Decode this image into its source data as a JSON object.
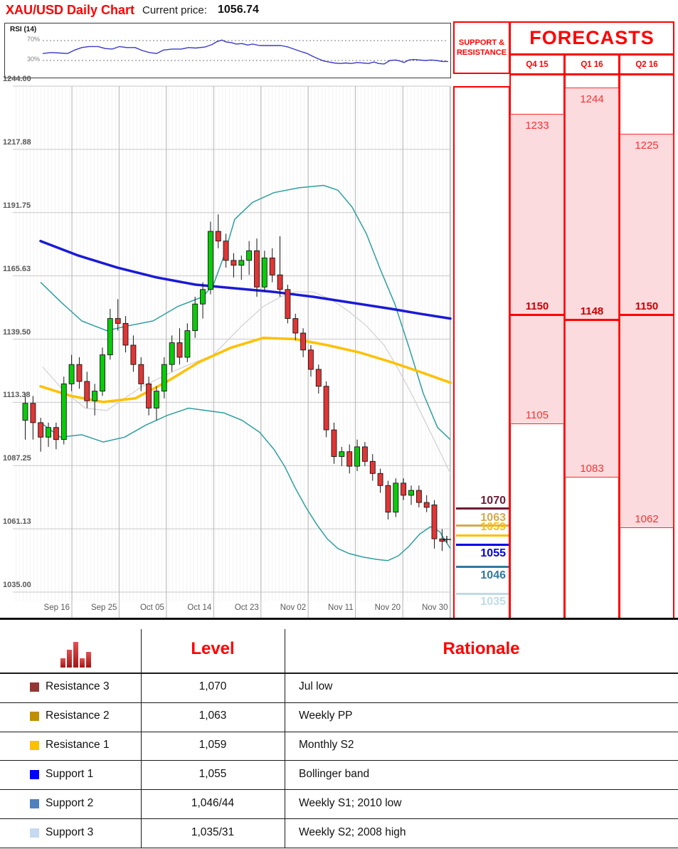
{
  "header": {
    "title": "XAU/USD Daily Chart",
    "current_price_label": "Current price:",
    "current_price": "1056.74"
  },
  "rsi_panel": {
    "label": "RSI (14)",
    "overbought_label": "70%",
    "oversold_label": "30%",
    "line_color": "#3A3AC8"
  },
  "support_resistance": {
    "header_line1": "SUPPORT &",
    "header_line2": "RESISTANCE",
    "levels": [
      {
        "label": "1070",
        "value": 1070,
        "color": "#6E1A33",
        "label_pos": "above"
      },
      {
        "label": "1063",
        "value": 1063,
        "color": "#D4A94F",
        "label_pos": "above"
      },
      {
        "label": "1059",
        "value": 1059,
        "color": "#FFC000",
        "label_pos": "above"
      },
      {
        "label": "1055",
        "value": 1055,
        "color": "#0000E6",
        "label_pos": "below"
      },
      {
        "label": "1046",
        "value": 1046,
        "color": "#31789E",
        "label_pos": "below"
      },
      {
        "label": "1035",
        "value": 1035,
        "color": "#BFDBE3",
        "label_pos": "below"
      }
    ]
  },
  "forecasts": {
    "title": "FORECASTS",
    "range_fill": "#FCDBDE",
    "columns": [
      {
        "label": "Q4 15",
        "high": 1233,
        "low": 1105,
        "target": 1150
      },
      {
        "label": "Q1 16",
        "high": 1244,
        "low": 1083,
        "target": 1148
      },
      {
        "label": "Q2 16",
        "high": 1225,
        "low": 1062,
        "target": 1150
      }
    ]
  },
  "levels_table": {
    "col_level": "Level",
    "col_rationale": "Rationale",
    "rows": [
      {
        "swatch": "#943634",
        "name": "Resistance 3",
        "level": "1,070",
        "rationale": "Jul low"
      },
      {
        "swatch": "#BF8F00",
        "name": "Resistance 2",
        "level": "1,063",
        "rationale": "Weekly PP"
      },
      {
        "swatch": "#FFC000",
        "name": "Resistance 1",
        "level": "1,059",
        "rationale": "Monthly S2"
      },
      {
        "swatch": "#0000FF",
        "name": "Support 1",
        "level": "1,055",
        "rationale": "Bollinger band"
      },
      {
        "swatch": "#4F81BD",
        "name": "Support 2",
        "level": "1,046/44",
        "rationale": "Weekly S1; 2010 low"
      },
      {
        "swatch": "#C5D9F1",
        "name": "Support 3",
        "level": "1,035/31",
        "rationale": "Weekly S2; 2008 high"
      }
    ]
  },
  "chart_data": {
    "type": "candlestick",
    "title": "XAU/USD Daily Chart",
    "last_price": 1056.74,
    "y_axis": {
      "min": 1035,
      "max": 1244,
      "ticks": [
        "1244.00",
        "1217.88",
        "1191.75",
        "1165.63",
        "1139.50",
        "1113.38",
        "1087.25",
        "1061.13",
        "1035.00"
      ]
    },
    "x_axis": {
      "labels": [
        "Sep 16",
        "Sep 25",
        "Oct 05",
        "Oct 14",
        "Oct 23",
        "Nov 02",
        "Nov 11",
        "Nov 20",
        "Nov 30"
      ]
    },
    "candle_colors": {
      "up": "#0ACB0A",
      "down": "#E23535"
    },
    "candles_ohlc": [
      [
        1106,
        1117,
        1098,
        1113
      ],
      [
        1113,
        1116,
        1098,
        1105
      ],
      [
        1105,
        1107,
        1093,
        1099
      ],
      [
        1099,
        1105,
        1095,
        1103
      ],
      [
        1103,
        1105,
        1094,
        1098
      ],
      [
        1098,
        1124,
        1096,
        1121
      ],
      [
        1121,
        1133,
        1118,
        1129
      ],
      [
        1129,
        1132,
        1119,
        1122
      ],
      [
        1122,
        1126,
        1111,
        1114
      ],
      [
        1114,
        1121,
        1108,
        1118
      ],
      [
        1118,
        1136,
        1116,
        1133
      ],
      [
        1133,
        1152,
        1131,
        1148
      ],
      [
        1148,
        1156,
        1143,
        1146
      ],
      [
        1146,
        1149,
        1134,
        1137
      ],
      [
        1137,
        1141,
        1126,
        1129
      ],
      [
        1129,
        1132,
        1118,
        1121
      ],
      [
        1121,
        1124,
        1108,
        1111
      ],
      [
        1111,
        1120,
        1106,
        1118
      ],
      [
        1118,
        1132,
        1115,
        1129
      ],
      [
        1129,
        1141,
        1126,
        1138
      ],
      [
        1138,
        1144,
        1129,
        1132
      ],
      [
        1132,
        1146,
        1130,
        1143
      ],
      [
        1143,
        1157,
        1140,
        1154
      ],
      [
        1154,
        1163,
        1148,
        1160
      ],
      [
        1160,
        1188,
        1158,
        1184
      ],
      [
        1184,
        1191,
        1177,
        1180
      ],
      [
        1180,
        1183,
        1169,
        1172
      ],
      [
        1172,
        1175,
        1165,
        1170
      ],
      [
        1170,
        1174,
        1164,
        1172
      ],
      [
        1172,
        1180,
        1166,
        1176
      ],
      [
        1176,
        1181,
        1157,
        1161
      ],
      [
        1161,
        1176,
        1159,
        1173
      ],
      [
        1173,
        1177,
        1163,
        1166
      ],
      [
        1166,
        1182,
        1157,
        1160
      ],
      [
        1160,
        1162,
        1146,
        1148
      ],
      [
        1148,
        1150,
        1139,
        1142
      ],
      [
        1142,
        1144,
        1132,
        1135
      ],
      [
        1135,
        1137,
        1124,
        1127
      ],
      [
        1127,
        1129,
        1117,
        1120
      ],
      [
        1120,
        1122,
        1099,
        1102
      ],
      [
        1102,
        1105,
        1088,
        1091
      ],
      [
        1091,
        1095,
        1087,
        1093
      ],
      [
        1093,
        1096,
        1084,
        1087
      ],
      [
        1087,
        1098,
        1085,
        1095
      ],
      [
        1095,
        1097,
        1087,
        1089
      ],
      [
        1089,
        1092,
        1081,
        1084
      ],
      [
        1084,
        1086,
        1076,
        1079
      ],
      [
        1079,
        1081,
        1065,
        1068
      ],
      [
        1068,
        1082,
        1066,
        1080
      ],
      [
        1080,
        1082,
        1073,
        1075
      ],
      [
        1075,
        1079,
        1071,
        1077
      ],
      [
        1077,
        1079,
        1070,
        1072
      ],
      [
        1072,
        1075,
        1068,
        1070
      ],
      [
        1071,
        1073,
        1053,
        1057
      ],
      [
        1057,
        1061,
        1052,
        1056
      ]
    ],
    "overlays": {
      "ma_blue": {
        "color": "#1A1AD6",
        "points": [
          [
            57,
            1180
          ],
          [
            110,
            1174
          ],
          [
            165,
            1169
          ],
          [
            220,
            1165
          ],
          [
            275,
            1162
          ],
          [
            330,
            1160.5
          ],
          [
            385,
            1159
          ],
          [
            440,
            1157
          ],
          [
            495,
            1154.5
          ],
          [
            550,
            1152
          ],
          [
            590,
            1150
          ],
          [
            633,
            1148
          ]
        ]
      },
      "ma_yellow": {
        "color": "#FFC000",
        "points": [
          [
            57,
            1120
          ],
          [
            100,
            1116
          ],
          [
            145,
            1113.5
          ],
          [
            190,
            1115
          ],
          [
            235,
            1122
          ],
          [
            280,
            1130
          ],
          [
            325,
            1136
          ],
          [
            370,
            1140
          ],
          [
            415,
            1139.5
          ],
          [
            460,
            1137
          ],
          [
            505,
            1134
          ],
          [
            550,
            1130
          ],
          [
            590,
            1126
          ],
          [
            633,
            1121.5
          ]
        ]
      },
      "bollinger_upper": {
        "color": "#2F9E9E",
        "points": [
          [
            57,
            1163
          ],
          [
            85,
            1155
          ],
          [
            115,
            1147
          ],
          [
            150,
            1143
          ],
          [
            180,
            1145
          ],
          [
            215,
            1147
          ],
          [
            250,
            1153
          ],
          [
            285,
            1157
          ],
          [
            300,
            1162
          ],
          [
            315,
            1174
          ],
          [
            330,
            1189
          ],
          [
            355,
            1196
          ],
          [
            385,
            1200
          ],
          [
            420,
            1202
          ],
          [
            455,
            1203
          ],
          [
            475,
            1201
          ],
          [
            495,
            1194
          ],
          [
            515,
            1183
          ],
          [
            535,
            1168
          ],
          [
            555,
            1154
          ],
          [
            575,
            1136
          ],
          [
            595,
            1117
          ],
          [
            615,
            1103
          ],
          [
            633,
            1098
          ]
        ]
      },
      "bollinger_lower": {
        "color": "#2F9E9E",
        "points": [
          [
            57,
            1105
          ],
          [
            85,
            1099
          ],
          [
            115,
            1100
          ],
          [
            145,
            1097
          ],
          [
            175,
            1099
          ],
          [
            205,
            1104
          ],
          [
            235,
            1108
          ],
          [
            265,
            1111
          ],
          [
            290,
            1110
          ],
          [
            315,
            1109
          ],
          [
            340,
            1106
          ],
          [
            365,
            1101
          ],
          [
            385,
            1094
          ],
          [
            400,
            1087
          ],
          [
            415,
            1078
          ],
          [
            430,
            1070
          ],
          [
            445,
            1063
          ],
          [
            460,
            1057
          ],
          [
            475,
            1053
          ],
          [
            490,
            1051
          ],
          [
            510,
            1049.5
          ],
          [
            530,
            1048.5
          ],
          [
            545,
            1048
          ],
          [
            560,
            1050
          ],
          [
            575,
            1054
          ],
          [
            590,
            1059
          ],
          [
            605,
            1062
          ],
          [
            618,
            1060
          ],
          [
            633,
            1053
          ]
        ]
      },
      "bollinger_mid": {
        "color": "#D0D0D0",
        "points": [
          [
            60,
            1128
          ],
          [
            90,
            1118
          ],
          [
            120,
            1111
          ],
          [
            150,
            1110
          ],
          [
            200,
            1120
          ],
          [
            250,
            1127
          ],
          [
            300,
            1133
          ],
          [
            340,
            1145
          ],
          [
            370,
            1153
          ],
          [
            395,
            1157
          ],
          [
            415,
            1159
          ],
          [
            440,
            1159
          ],
          [
            465,
            1156
          ],
          [
            490,
            1151
          ],
          [
            515,
            1145
          ],
          [
            540,
            1137
          ],
          [
            560,
            1127
          ],
          [
            580,
            1116
          ],
          [
            600,
            1104
          ],
          [
            620,
            1092
          ],
          [
            633,
            1084
          ]
        ]
      }
    },
    "rsi": {
      "label": "RSI (14)",
      "overbought": 70,
      "oversold": 30,
      "points": [
        [
          60,
          44
        ],
        [
          72,
          46
        ],
        [
          84,
          45
        ],
        [
          95,
          44
        ],
        [
          105,
          51
        ],
        [
          115,
          56
        ],
        [
          125,
          58
        ],
        [
          138,
          58
        ],
        [
          148,
          54
        ],
        [
          158,
          53
        ],
        [
          168,
          58
        ],
        [
          178,
          56
        ],
        [
          190,
          56
        ],
        [
          200,
          50
        ],
        [
          210,
          46
        ],
        [
          220,
          44
        ],
        [
          230,
          51
        ],
        [
          242,
          53
        ],
        [
          255,
          53
        ],
        [
          265,
          56
        ],
        [
          275,
          55
        ],
        [
          288,
          57
        ],
        [
          298,
          62
        ],
        [
          305,
          68
        ],
        [
          312,
          71
        ],
        [
          318,
          67
        ],
        [
          325,
          66
        ],
        [
          332,
          63
        ],
        [
          340,
          64
        ],
        [
          348,
          61
        ],
        [
          355,
          63
        ],
        [
          365,
          60
        ],
        [
          375,
          60
        ],
        [
          385,
          60
        ],
        [
          395,
          60
        ],
        [
          405,
          57
        ],
        [
          415,
          52
        ],
        [
          425,
          47
        ],
        [
          432,
          44
        ],
        [
          440,
          38
        ],
        [
          448,
          33
        ],
        [
          455,
          29
        ],
        [
          462,
          27
        ],
        [
          470,
          25
        ],
        [
          478,
          24
        ],
        [
          486,
          25
        ],
        [
          494,
          24
        ],
        [
          502,
          26
        ],
        [
          510,
          25
        ],
        [
          518,
          24
        ],
        [
          526,
          27
        ],
        [
          532,
          24
        ],
        [
          540,
          23
        ],
        [
          548,
          30
        ],
        [
          556,
          31
        ],
        [
          562,
          29
        ],
        [
          568,
          26
        ],
        [
          575,
          31
        ],
        [
          582,
          32
        ],
        [
          590,
          31
        ],
        [
          598,
          30
        ],
        [
          606,
          31
        ],
        [
          614,
          30
        ],
        [
          622,
          28
        ],
        [
          630,
          28
        ]
      ]
    }
  }
}
